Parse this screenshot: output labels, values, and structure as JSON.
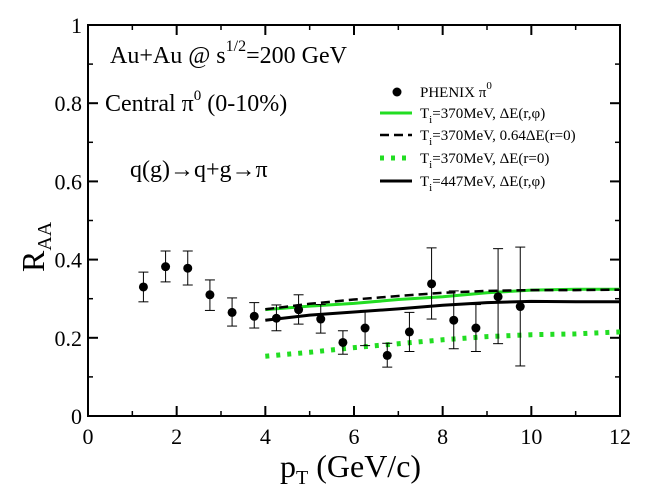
{
  "chart_data": {
    "type": "scatter",
    "title": "",
    "xlabel": "p",
    "xlabel_sub": "T",
    "xlabel_rest": " (GeV/c)",
    "ylabel": "R",
    "ylabel_sub": "AA",
    "xlim": [
      0,
      12
    ],
    "ylim": [
      0,
      1
    ],
    "xticks": [
      0,
      2,
      4,
      6,
      8,
      10,
      12
    ],
    "yticks": [
      0,
      0.2,
      0.4,
      0.6,
      0.8,
      1
    ],
    "xtick_labels": [
      "0",
      "2",
      "4",
      "6",
      "8",
      "10",
      "12"
    ],
    "ytick_labels": [
      "0",
      "0.2",
      "0.4",
      "0.6",
      "0.8",
      "1"
    ],
    "annotations": {
      "system_a": "Au+Au @  s",
      "system_sup": "1/2",
      "system_b": "=200 GeV",
      "centrality_a": "Central  π",
      "centrality_sup": "0",
      "centrality_b": " (0-10%)",
      "process": "q(g)→q+g→π"
    },
    "data_points": {
      "name": "PHENIX π",
      "name_sup": "0",
      "x": [
        1.25,
        1.75,
        2.25,
        2.75,
        3.25,
        3.75,
        4.25,
        4.75,
        5.25,
        5.75,
        6.25,
        6.75,
        7.25,
        7.75,
        8.25,
        8.75,
        9.25,
        9.75
      ],
      "y": [
        0.33,
        0.382,
        0.378,
        0.31,
        0.265,
        0.255,
        0.25,
        0.272,
        0.248,
        0.188,
        0.225,
        0.155,
        0.215,
        0.338,
        0.245,
        0.225,
        0.305,
        0.28
      ],
      "ylow": [
        0.292,
        0.343,
        0.335,
        0.27,
        0.23,
        0.225,
        0.218,
        0.235,
        0.212,
        0.158,
        0.18,
        0.125,
        0.165,
        0.248,
        0.172,
        0.165,
        0.185,
        0.128
      ],
      "yhigh": [
        0.368,
        0.422,
        0.422,
        0.348,
        0.302,
        0.29,
        0.284,
        0.31,
        0.285,
        0.218,
        0.27,
        0.186,
        0.265,
        0.43,
        0.32,
        0.285,
        0.428,
        0.432
      ]
    },
    "series": [
      {
        "name_a": "T",
        "name_sub": "i",
        "name_b": "=370MeV, ΔE(r,φ)",
        "color": "#22dd22",
        "style": "solid",
        "x": [
          4,
          5,
          6,
          7,
          8,
          9,
          10,
          11,
          12
        ],
        "values": [
          0.272,
          0.281,
          0.288,
          0.298,
          0.305,
          0.315,
          0.322,
          0.324,
          0.324
        ]
      },
      {
        "name_a": "T",
        "name_sub": "i",
        "name_b": "=370MeV, 0.64ΔE(r=0)",
        "color": "#000000",
        "style": "dashed",
        "x": [
          4,
          5,
          6,
          7,
          8,
          9,
          10,
          11,
          12
        ],
        "values": [
          0.273,
          0.287,
          0.298,
          0.307,
          0.315,
          0.32,
          0.322,
          0.322,
          0.323
        ]
      },
      {
        "name_a": "T",
        "name_sub": "i",
        "name_b": "=370MeV, ΔE(r=0)",
        "color": "#22dd22",
        "style": "dotted",
        "x": [
          4,
          5,
          6,
          7,
          8,
          9,
          10,
          11,
          12
        ],
        "values": [
          0.153,
          0.163,
          0.175,
          0.185,
          0.195,
          0.203,
          0.208,
          0.21,
          0.215
        ]
      },
      {
        "name_a": "T",
        "name_sub": "i",
        "name_b": "=447MeV, ΔE(r,φ)",
        "color": "#000000",
        "style": "solid",
        "x": [
          4,
          5,
          6,
          7,
          8,
          9,
          10,
          11,
          12
        ],
        "values": [
          0.245,
          0.258,
          0.266,
          0.274,
          0.283,
          0.29,
          0.293,
          0.292,
          0.292
        ]
      }
    ]
  }
}
